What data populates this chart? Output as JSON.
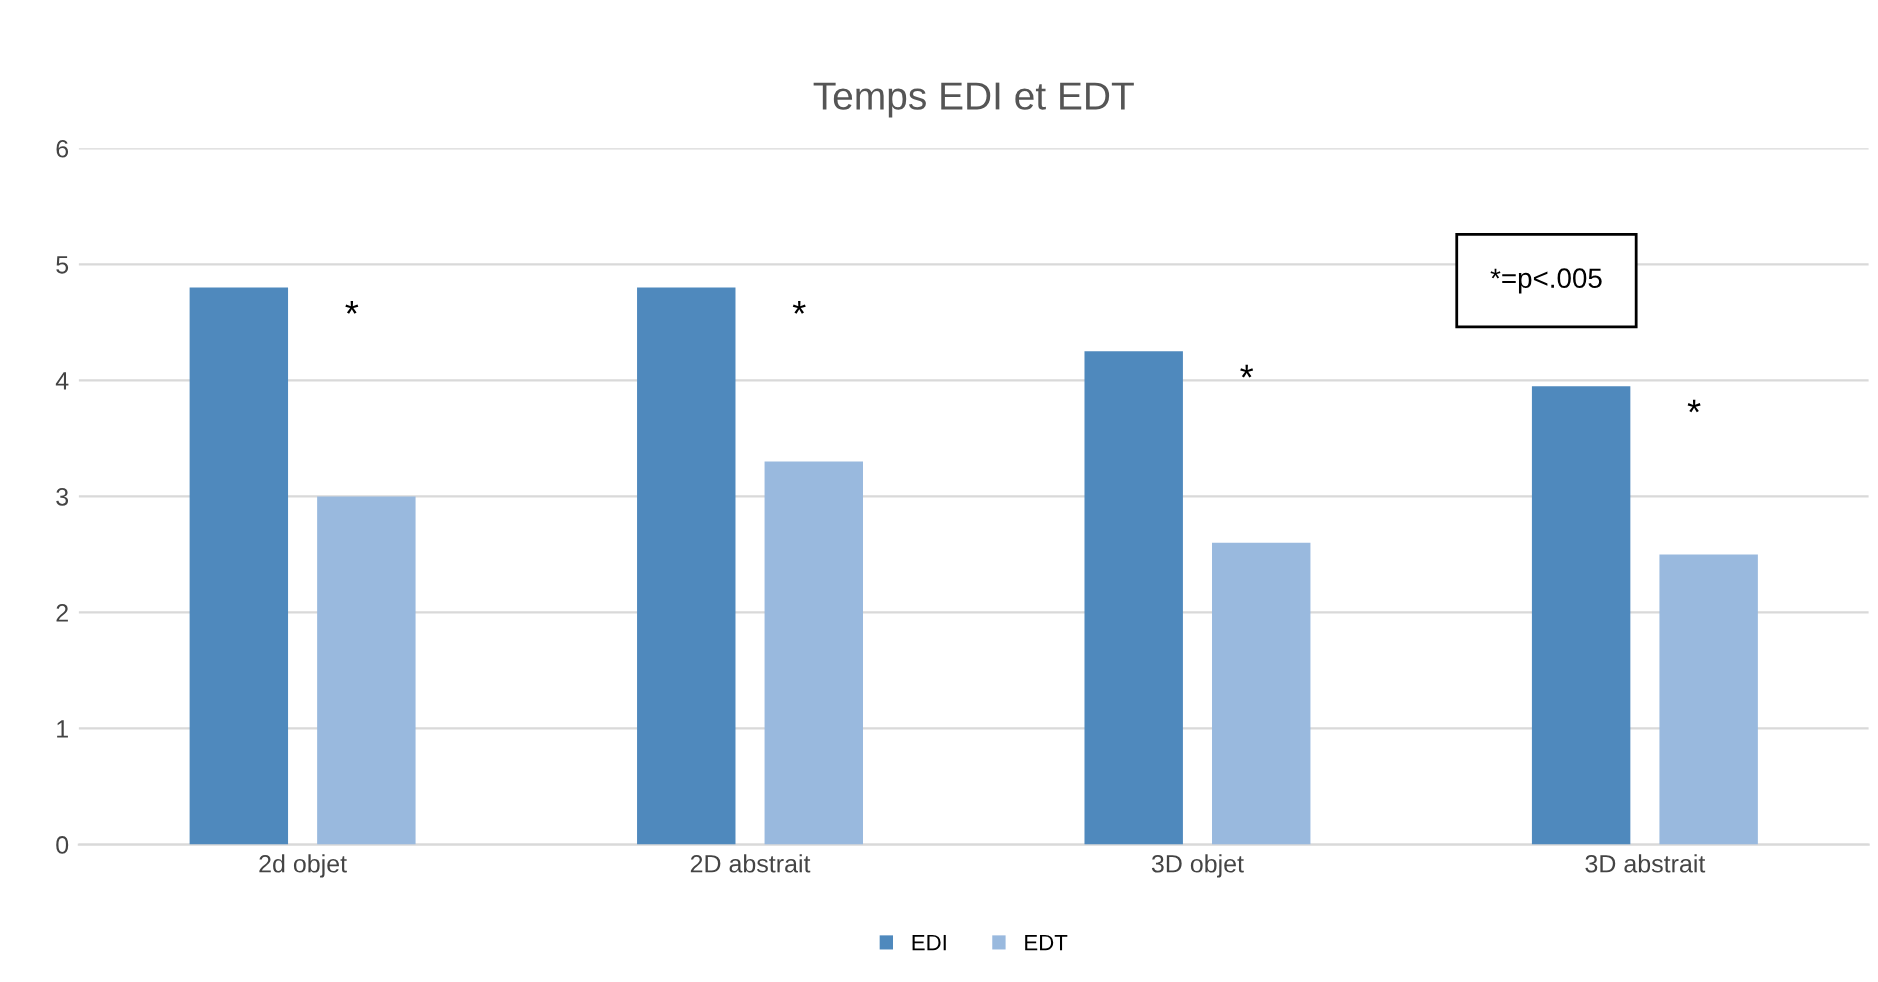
{
  "chart_data": {
    "type": "bar",
    "title": "Temps EDI et EDT",
    "categories": [
      "2d objet",
      "2D abstrait",
      "3D objet",
      "3D abstrait"
    ],
    "series": [
      {
        "name": "EDI",
        "color": "#4f89bd",
        "values": [
          4.8,
          4.8,
          4.25,
          3.95
        ]
      },
      {
        "name": "EDT",
        "color": "#99b9de",
        "values": [
          3.0,
          3.3,
          2.6,
          2.5
        ]
      }
    ],
    "ylim": [
      0,
      6
    ],
    "yticks": [
      0,
      1,
      2,
      3,
      4,
      5,
      6
    ],
    "grid": "y",
    "legend": "bottom",
    "annotations": [
      "*",
      "*",
      "*",
      "*",
      "*=p<.005"
    ]
  }
}
